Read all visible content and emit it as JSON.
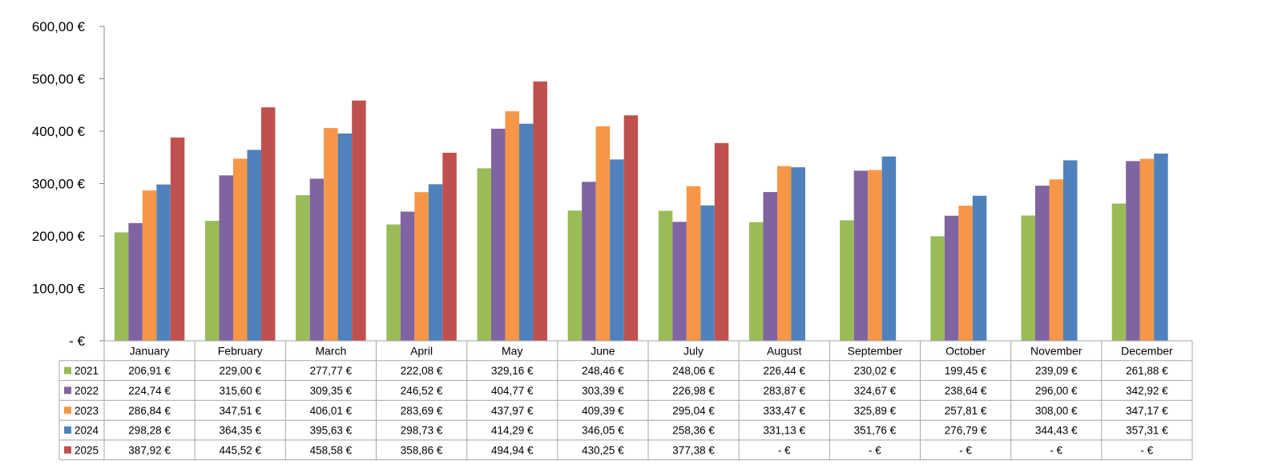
{
  "chart_data": {
    "type": "bar",
    "title": "",
    "xlabel": "",
    "ylabel": "",
    "ylim": [
      0,
      600
    ],
    "yticks": [
      0,
      100,
      200,
      300,
      400,
      500,
      600
    ],
    "ytick_labels": [
      "-  €",
      "100,00 €",
      "200,00 €",
      "300,00 €",
      "400,00 €",
      "500,00 €",
      "600,00 €"
    ],
    "grid": false,
    "legend": "data-table",
    "categories": [
      "January",
      "February",
      "March",
      "April",
      "May",
      "June",
      "July",
      "August",
      "September",
      "October",
      "November",
      "December"
    ],
    "series": [
      {
        "name": "2021",
        "color": "#9bbb59",
        "values": [
          206.91,
          229.0,
          277.77,
          222.08,
          329.16,
          248.46,
          248.06,
          226.44,
          230.02,
          199.45,
          239.09,
          261.88
        ],
        "labels": [
          "206,91 €",
          "229,00 €",
          "277,77 €",
          "222,08 €",
          "329,16 €",
          "248,46 €",
          "248,06 €",
          "226,44 €",
          "230,02 €",
          "199,45 €",
          "239,09 €",
          "261,88 €"
        ]
      },
      {
        "name": "2022",
        "color": "#8064a2",
        "values": [
          224.74,
          315.6,
          309.35,
          246.52,
          404.77,
          303.39,
          226.98,
          283.87,
          324.67,
          238.64,
          296.0,
          342.92
        ],
        "labels": [
          "224,74 €",
          "315,60 €",
          "309,35 €",
          "246,52 €",
          "404,77 €",
          "303,39 €",
          "226,98 €",
          "283,87 €",
          "324,67 €",
          "238,64 €",
          "296,00 €",
          "342,92 €"
        ]
      },
      {
        "name": "2023",
        "color": "#f79646",
        "values": [
          286.84,
          347.51,
          406.01,
          283.69,
          437.97,
          409.39,
          295.04,
          333.47,
          325.89,
          257.81,
          308.0,
          347.17
        ],
        "labels": [
          "286,84 €",
          "347,51 €",
          "406,01 €",
          "283,69 €",
          "437,97 €",
          "409,39 €",
          "295,04 €",
          "333,47 €",
          "325,89 €",
          "257,81 €",
          "308,00 €",
          "347,17 €"
        ]
      },
      {
        "name": "2024",
        "color": "#4f81bd",
        "values": [
          298.28,
          364.35,
          395.63,
          298.73,
          414.29,
          346.05,
          258.36,
          331.13,
          351.76,
          276.79,
          344.43,
          357.31
        ],
        "labels": [
          "298,28 €",
          "364,35 €",
          "395,63 €",
          "298,73 €",
          "414,29 €",
          "346,05 €",
          "258,36 €",
          "331,13 €",
          "351,76 €",
          "276,79 €",
          "344,43 €",
          "357,31 €"
        ]
      },
      {
        "name": "2025",
        "color": "#c0504d",
        "values": [
          387.92,
          445.52,
          458.58,
          358.86,
          494.94,
          430.25,
          377.38,
          0,
          0,
          0,
          0,
          0
        ],
        "labels": [
          "387,92 €",
          "445,52 €",
          "458,58 €",
          "358,86 €",
          "494,94 €",
          "430,25 €",
          "377,38 €",
          "-  €",
          "-  €",
          "-  €",
          "-  €",
          "-  €"
        ]
      }
    ]
  }
}
